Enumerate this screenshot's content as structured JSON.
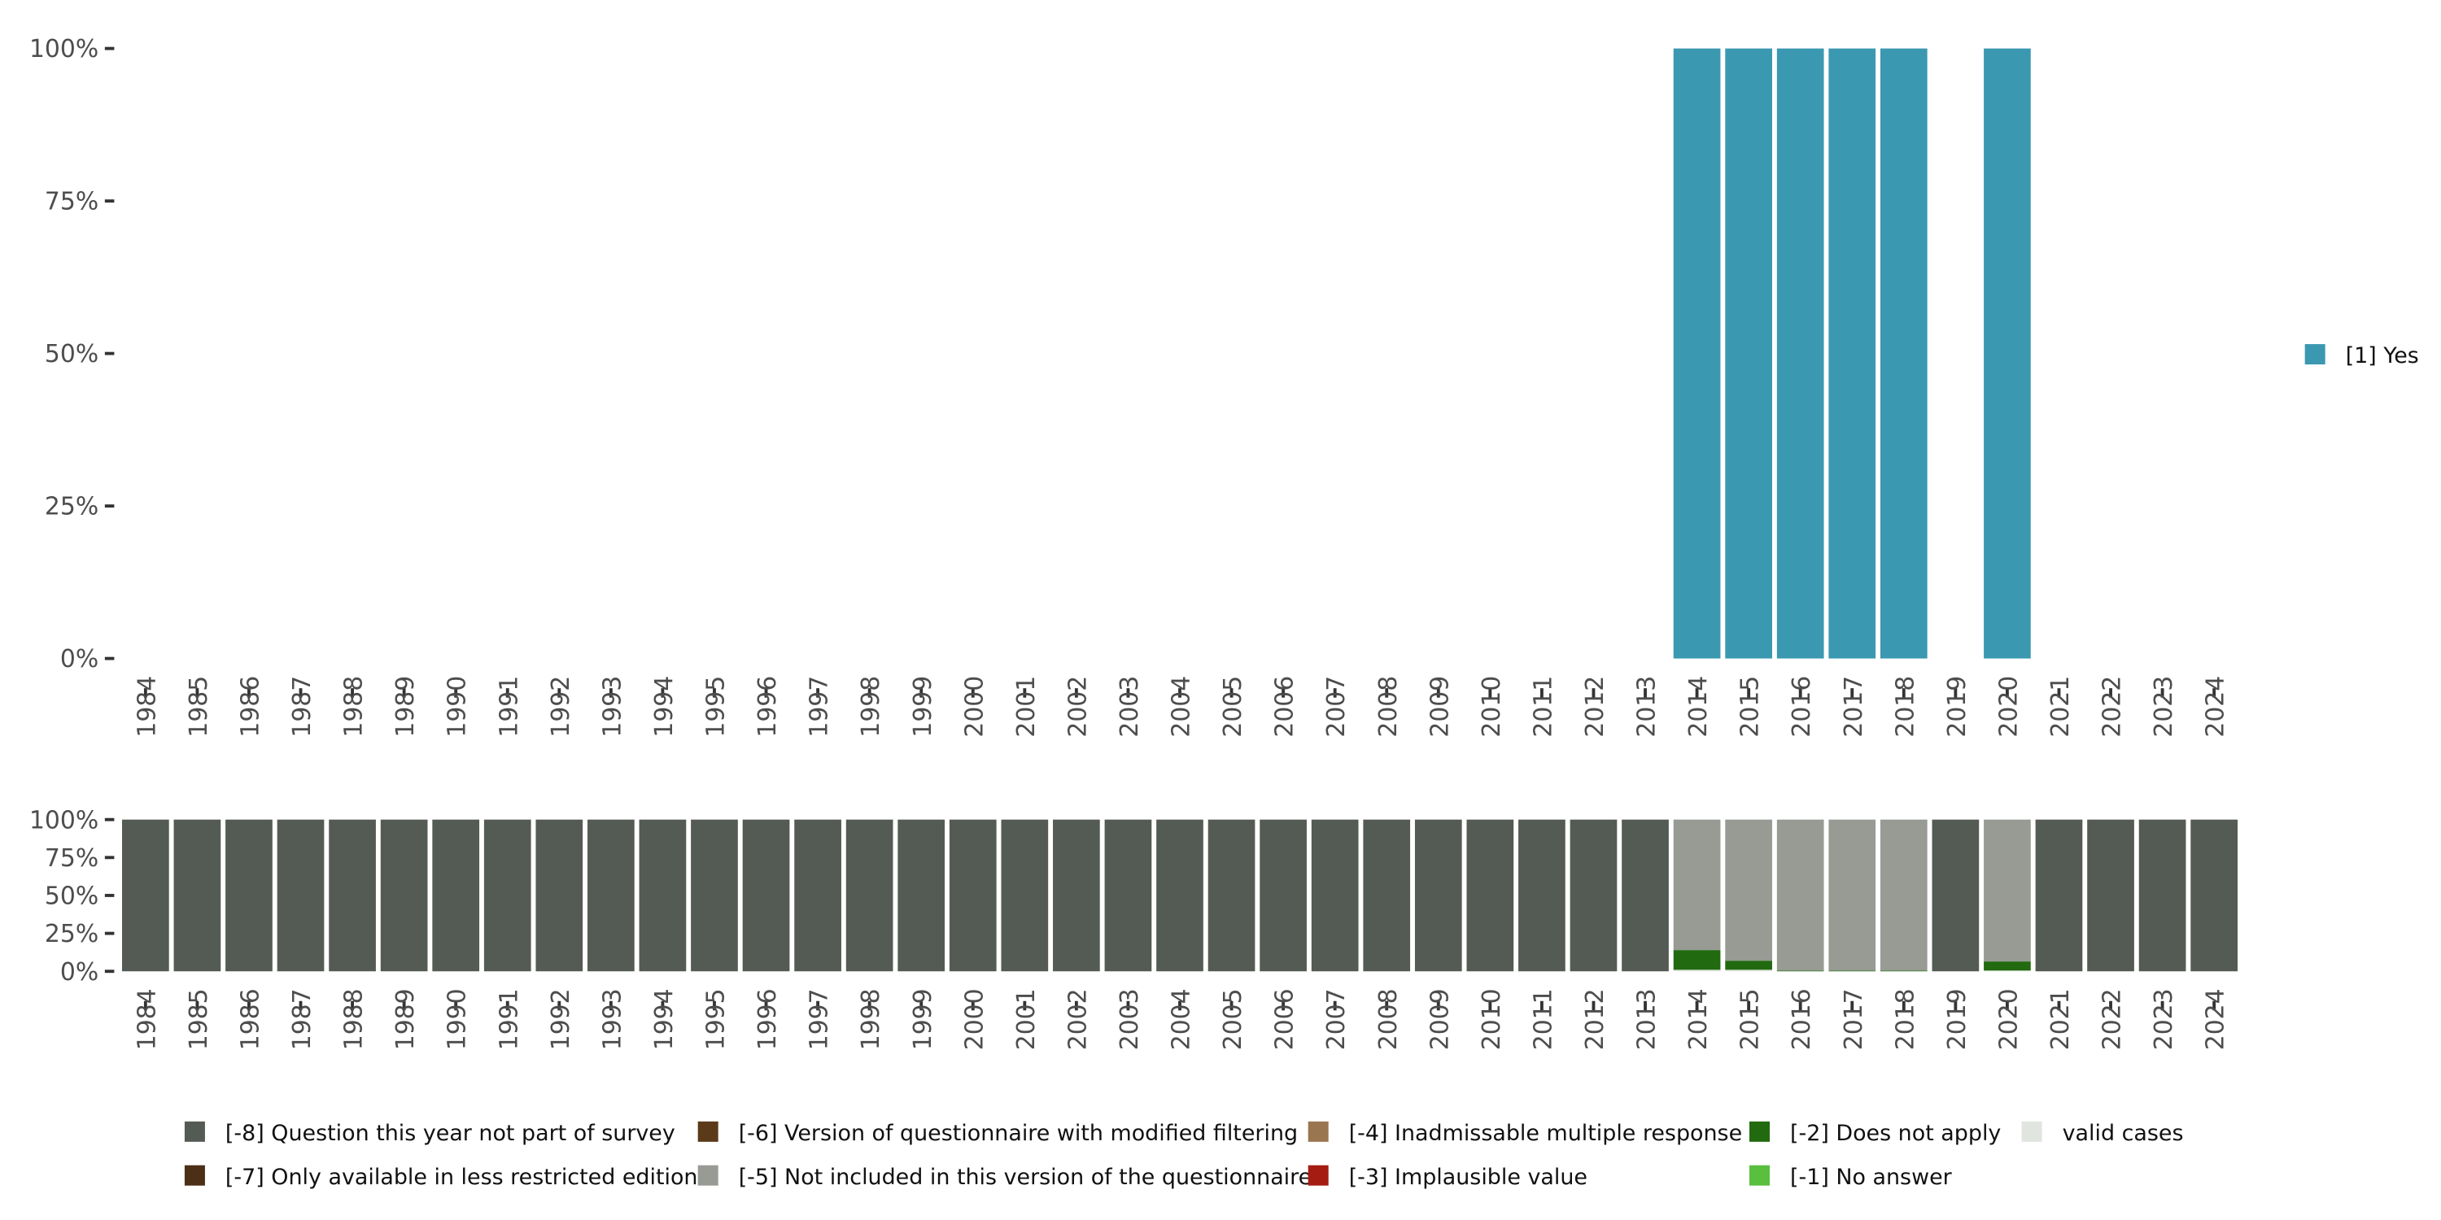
{
  "chart_data": [
    {
      "type": "bar",
      "stacked": true,
      "panel": "top",
      "categories": [
        "1984",
        "1985",
        "1986",
        "1987",
        "1988",
        "1989",
        "1990",
        "1991",
        "1992",
        "1993",
        "1994",
        "1995",
        "1996",
        "1997",
        "1998",
        "1999",
        "2000",
        "2001",
        "2002",
        "2003",
        "2004",
        "2005",
        "2006",
        "2007",
        "2008",
        "2009",
        "2010",
        "2011",
        "2012",
        "2013",
        "2014",
        "2015",
        "2016",
        "2017",
        "2018",
        "2019",
        "2020",
        "2021",
        "2022",
        "2023",
        "2024"
      ],
      "series": [
        {
          "name": "[1] Yes",
          "color": "#3b98b1",
          "values": [
            0,
            0,
            0,
            0,
            0,
            0,
            0,
            0,
            0,
            0,
            0,
            0,
            0,
            0,
            0,
            0,
            0,
            0,
            0,
            0,
            0,
            0,
            0,
            0,
            0,
            0,
            0,
            0,
            0,
            0,
            100,
            100,
            100,
            100,
            100,
            0,
            100,
            0,
            0,
            0,
            0
          ]
        }
      ],
      "ylim": [
        0,
        100
      ],
      "yticks": [
        "0%",
        "25%",
        "50%",
        "75%",
        "100%"
      ],
      "legend_position": "right",
      "title": "",
      "xlabel": "",
      "ylabel": ""
    },
    {
      "type": "bar",
      "stacked": true,
      "panel": "bottom",
      "categories": [
        "1984",
        "1985",
        "1986",
        "1987",
        "1988",
        "1989",
        "1990",
        "1991",
        "1992",
        "1993",
        "1994",
        "1995",
        "1996",
        "1997",
        "1998",
        "1999",
        "2000",
        "2001",
        "2002",
        "2003",
        "2004",
        "2005",
        "2006",
        "2007",
        "2008",
        "2009",
        "2010",
        "2011",
        "2012",
        "2013",
        "2014",
        "2015",
        "2016",
        "2017",
        "2018",
        "2019",
        "2020",
        "2021",
        "2022",
        "2023",
        "2024"
      ],
      "series": [
        {
          "name": "valid cases",
          "color": "#e1e5df",
          "values": [
            0,
            0,
            0,
            0,
            0,
            0,
            0,
            0,
            0,
            0,
            0,
            0,
            0,
            0,
            0,
            0,
            0,
            0,
            0,
            0,
            0,
            0,
            0,
            0,
            0,
            0,
            0,
            0,
            0,
            0,
            1,
            1,
            0,
            0,
            0,
            0,
            0.5,
            0,
            0,
            0,
            0
          ]
        },
        {
          "name": "[-2] Does not apply",
          "color": "#226a10",
          "values": [
            0,
            0,
            0,
            0,
            0,
            0,
            0,
            0,
            0,
            0,
            0,
            0,
            0,
            0,
            0,
            0,
            0,
            0,
            0,
            0,
            0,
            0,
            0,
            0,
            0,
            0,
            0,
            0,
            0,
            0,
            13,
            6,
            0.5,
            0.5,
            0.5,
            0,
            6,
            0,
            0,
            0,
            0
          ]
        },
        {
          "name": "[-5] Not included in this version of the questionnaire",
          "color": "#979b94",
          "values": [
            0,
            0,
            0,
            0,
            0,
            0,
            0,
            0,
            0,
            0,
            0,
            0,
            0,
            0,
            0,
            0,
            0,
            0,
            0,
            0,
            0,
            0,
            0,
            0,
            0,
            0,
            0,
            0,
            0,
            0,
            86,
            93,
            99.5,
            99.5,
            99.5,
            0,
            93.5,
            0,
            0,
            0,
            0
          ]
        },
        {
          "name": "[-8] Question this year not part of survey",
          "color": "#545b54",
          "values": [
            100,
            100,
            100,
            100,
            100,
            100,
            100,
            100,
            100,
            100,
            100,
            100,
            100,
            100,
            100,
            100,
            100,
            100,
            100,
            100,
            100,
            100,
            100,
            100,
            100,
            100,
            100,
            100,
            100,
            100,
            0,
            0,
            0,
            0,
            0,
            100,
            0,
            100,
            100,
            100,
            100
          ]
        }
      ],
      "ylim": [
        0,
        100
      ],
      "yticks": [
        "0%",
        "25%",
        "50%",
        "75%",
        "100%"
      ],
      "legend_position": "bottom",
      "legend": [
        {
          "label": "[-8] Question this year not part of survey",
          "color": "#545b54"
        },
        {
          "label": "[-7] Only available in less restricted edition",
          "color": "#4b2f17"
        },
        {
          "label": "[-6] Version of questionnaire with modified filtering",
          "color": "#5b3a1a"
        },
        {
          "label": "[-5] Not included in this version of the questionnaire",
          "color": "#979b94"
        },
        {
          "label": "[-4] Inadmissable multiple response",
          "color": "#9a7650"
        },
        {
          "label": "[-3] Implausible value",
          "color": "#a51c13"
        },
        {
          "label": "[-2] Does not apply",
          "color": "#226a10"
        },
        {
          "label": "[-1] No answer",
          "color": "#5abe3e"
        },
        {
          "label": "valid cases",
          "color": "#e1e5df"
        }
      ]
    }
  ]
}
